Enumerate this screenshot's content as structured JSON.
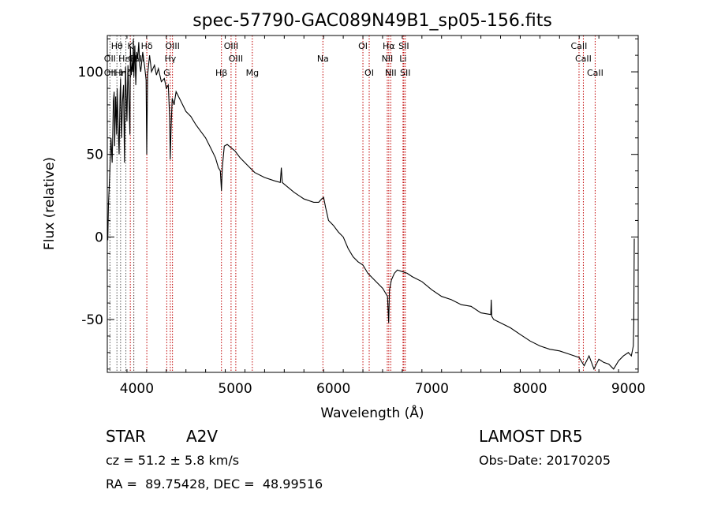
{
  "chart_data": {
    "type": "line",
    "title": "spec-57790-GAC089N49B1_sp05-156.fits",
    "xlabel": "Wavelength (Å)",
    "ylabel": "Flux (relative)",
    "xlim": [
      3700,
      9100
    ],
    "ylim": [
      -82,
      122
    ],
    "xticks": [
      4000,
      5000,
      6000,
      7000,
      8000,
      9000
    ],
    "yticks": [
      -50,
      0,
      50,
      100
    ],
    "grid": false,
    "series": [
      {
        "color": "#000000",
        "x": [
          3700,
          3705,
          3712,
          3725,
          3738,
          3750,
          3762,
          3770,
          3775,
          3785,
          3795,
          3800,
          3810,
          3820,
          3830,
          3835,
          3845,
          3855,
          3865,
          3875,
          3885,
          3890,
          3900,
          3910,
          3920,
          3930,
          3935,
          3945,
          3955,
          3960,
          3965,
          3970,
          3980,
          3990,
          4000,
          4010,
          4020,
          4030,
          4040,
          4060,
          4080,
          4095,
          4101,
          4110,
          4130,
          4150,
          4180,
          4200,
          4220,
          4250,
          4280,
          4300,
          4320,
          4335,
          4340,
          4348,
          4360,
          4380,
          4400,
          4450,
          4500,
          4550,
          4600,
          4650,
          4700,
          4750,
          4800,
          4830,
          4850,
          4861,
          4870,
          4890,
          4920,
          4960,
          5000,
          5050,
          5100,
          5150,
          5200,
          5300,
          5400,
          5460,
          5470,
          5480,
          5500,
          5600,
          5700,
          5800,
          5850,
          5880,
          5900,
          5920,
          5950,
          6000,
          6050,
          6100,
          6150,
          6200,
          6250,
          6300,
          6350,
          6400,
          6450,
          6500,
          6530,
          6550,
          6562,
          6570,
          6590,
          6620,
          6650,
          6700,
          6750,
          6800,
          6900,
          7000,
          7100,
          7200,
          7300,
          7400,
          7500,
          7600,
          7605,
          7610,
          7630,
          7700,
          7800,
          7900,
          8000,
          8100,
          8200,
          8300,
          8400,
          8500,
          8550,
          8600,
          8650,
          8700,
          8750,
          8800,
          8850,
          8900,
          8950,
          9000,
          9030,
          9050,
          9055,
          9060
        ],
        "y": [
          5,
          -2,
          20,
          38,
          60,
          45,
          82,
          88,
          55,
          85,
          62,
          90,
          68,
          50,
          86,
          96,
          60,
          82,
          92,
          45,
          103,
          92,
          70,
          104,
          85,
          62,
          115,
          98,
          106,
          100,
          120,
          97,
          116,
          92,
          112,
          108,
          118,
          104,
          100,
          112,
          103,
          95,
          50,
          98,
          110,
          100,
          104,
          98,
          102,
          94,
          96,
          90,
          92,
          72,
          47,
          65,
          84,
          80,
          88,
          82,
          76,
          73,
          68,
          64,
          60,
          54,
          48,
          42,
          40,
          28,
          42,
          55,
          56,
          54,
          52,
          48,
          45,
          42,
          39,
          36,
          34,
          33,
          42,
          33,
          32,
          27,
          23,
          21,
          21,
          23,
          24,
          18,
          10,
          7,
          3,
          0,
          -7,
          -12,
          -15,
          -17,
          -22,
          -25,
          -28,
          -31,
          -34,
          -36,
          -52,
          -32,
          -26,
          -22,
          -20,
          -21,
          -22,
          -24,
          -27,
          -32,
          -36,
          -38,
          -41,
          -42,
          -46,
          -47,
          -38,
          -48,
          -50,
          -52,
          -55,
          -59,
          -63,
          -66,
          -68,
          -69,
          -71,
          -73,
          -78,
          -72,
          -80,
          -74,
          -76,
          -77,
          -80,
          -75,
          -72,
          -70,
          -72,
          -66,
          -52,
          -1
        ]
      }
    ]
  },
  "lines_red": [
    {
      "name": "CaII K",
      "wl": 3934
    },
    {
      "name": "CaII H",
      "wl": 3969
    },
    {
      "name": "H delta",
      "wl": 4102
    },
    {
      "name": "G",
      "wl": 4305
    },
    {
      "name": "H gamma",
      "wl": 4341
    },
    {
      "name": "OIII 4363",
      "wl": 4363
    },
    {
      "name": "H beta",
      "wl": 4861
    },
    {
      "name": "OIII 4959",
      "wl": 4959
    },
    {
      "name": "OIII 5007",
      "wl": 5007
    },
    {
      "name": "Mg",
      "wl": 5175
    },
    {
      "name": "Na",
      "wl": 5893
    },
    {
      "name": "OI 6300",
      "wl": 6300
    },
    {
      "name": "OI 6364",
      "wl": 6364
    },
    {
      "name": "NII 6548",
      "wl": 6548
    },
    {
      "name": "H alpha",
      "wl": 6563
    },
    {
      "name": "NII 6583",
      "wl": 6583
    },
    {
      "name": "Li",
      "wl": 6708
    },
    {
      "name": "SII 6716",
      "wl": 6716
    },
    {
      "name": "SII 6731",
      "wl": 6731
    },
    {
      "name": "CaII 8498",
      "wl": 8498
    },
    {
      "name": "CaII 8542",
      "wl": 8542
    },
    {
      "name": "CaII 8662",
      "wl": 8662
    }
  ],
  "lines_dark": [
    {
      "name": "OII",
      "wl": 3727
    },
    {
      "name": "H theta",
      "wl": 3798
    },
    {
      "name": "H eta",
      "wl": 3835
    },
    {
      "name": "H zeta",
      "wl": 3889
    },
    {
      "name": "H epsilon",
      "wl": 3970
    }
  ],
  "line_labels": [
    {
      "text": "Hθ",
      "wl": 3798,
      "row": 1
    },
    {
      "text": "K",
      "wl": 3934,
      "row": 1
    },
    {
      "text": "Hδ",
      "wl": 4102,
      "row": 1
    },
    {
      "text": "OIII",
      "wl": 4363,
      "row": 1
    },
    {
      "text": "OIII",
      "wl": 4959,
      "row": 1
    },
    {
      "text": "OI",
      "wl": 6300,
      "row": 1
    },
    {
      "text": "Hα",
      "wl": 6563,
      "row": 1
    },
    {
      "text": "SII",
      "wl": 6716,
      "row": 1
    },
    {
      "text": "CaII",
      "wl": 8498,
      "row": 1
    },
    {
      "text": "OII",
      "wl": 3727,
      "row": 2
    },
    {
      "text": "Hε",
      "wl": 3870,
      "row": 2
    },
    {
      "text": "H",
      "wl": 3969,
      "row": 2
    },
    {
      "text": "CaII",
      "wl": 3995,
      "row": 2
    },
    {
      "text": "Hγ",
      "wl": 4341,
      "row": 2
    },
    {
      "text": "OIII",
      "wl": 5007,
      "row": 2
    },
    {
      "text": "NII",
      "wl": 6548,
      "row": 2
    },
    {
      "text": "Li",
      "wl": 6708,
      "row": 2
    },
    {
      "text": "CaII",
      "wl": 8542,
      "row": 2
    },
    {
      "text": "OII",
      "wl": 3727,
      "row": 3
    },
    {
      "text": "Hη",
      "wl": 3835,
      "row": 3
    },
    {
      "text": "Hζ",
      "wl": 3889,
      "row": 3
    },
    {
      "text": "G",
      "wl": 4305,
      "row": 3
    },
    {
      "text": "Hβ",
      "wl": 4861,
      "row": 3
    },
    {
      "text": "Mg",
      "wl": 5175,
      "row": 3
    },
    {
      "text": "Na",
      "wl": 5893,
      "row": 2
    },
    {
      "text": "OI",
      "wl": 6364,
      "row": 3
    },
    {
      "text": "NII",
      "wl": 6583,
      "row": 3
    },
    {
      "text": "SII",
      "wl": 6731,
      "row": 3
    },
    {
      "text": "CaII",
      "wl": 8662,
      "row": 3
    }
  ],
  "info": {
    "obj_class": "STAR",
    "subclass": "A2V",
    "survey": "LAMOST DR5",
    "cz": "cz = 51.2 ± 5.8 km/s",
    "obs_date": "Obs-Date: 20170205",
    "coords": "RA =  89.75428, DEC =  48.99516"
  }
}
